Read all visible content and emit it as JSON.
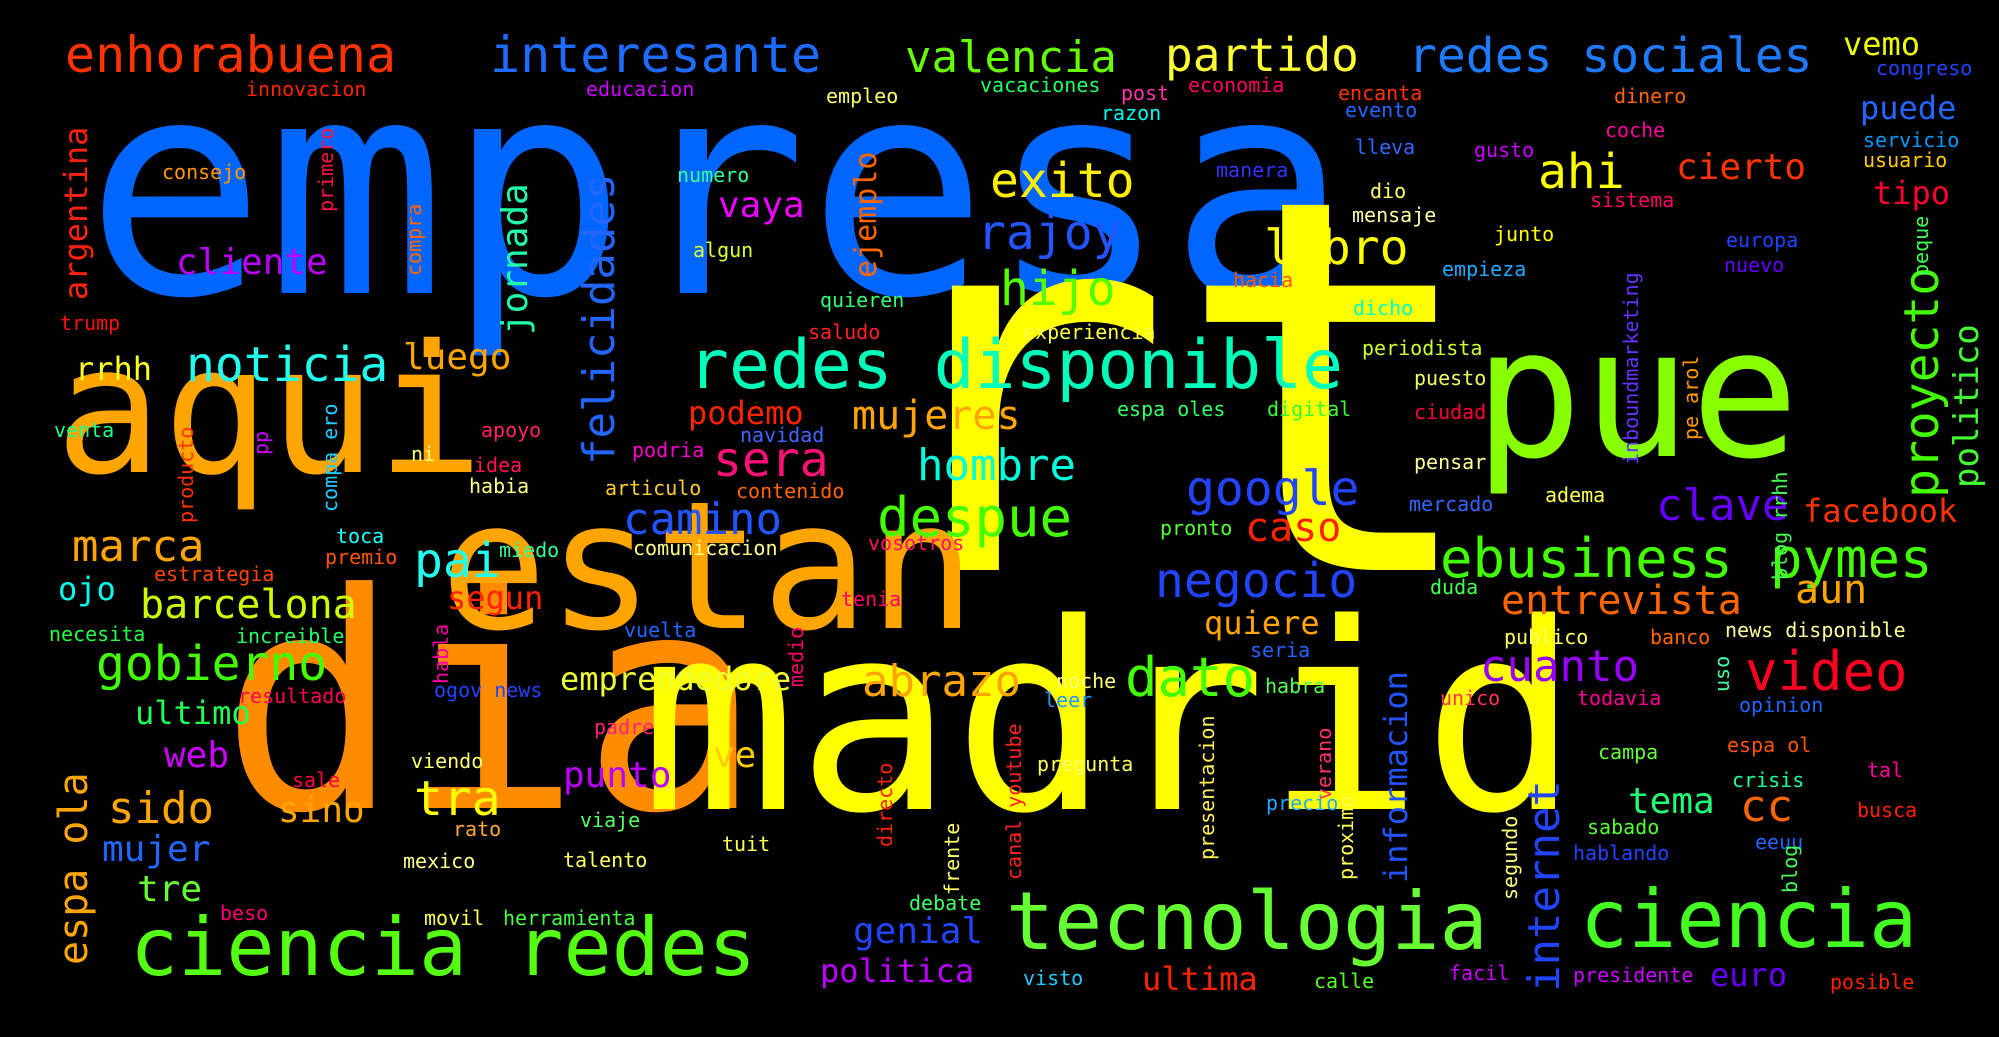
{
  "words": [
    {
      "text": "empresa",
      "color": "#0066ff"
    },
    {
      "text": "rt",
      "color": "#ffff00"
    },
    {
      "text": "dia",
      "color": "#ff8c00"
    },
    {
      "text": "madrid",
      "color": "#ffff00"
    },
    {
      "text": "aqui",
      "color": "#ffa500"
    },
    {
      "text": "estan",
      "color": "#ffa500"
    },
    {
      "text": "pue",
      "color": "#88ff00"
    },
    {
      "text": "tecnologia",
      "color": "#66ff33"
    },
    {
      "text": "ciencia redes",
      "color": "#55ff11"
    },
    {
      "text": "ciencia",
      "color": "#44ff22"
    },
    {
      "text": "redes disponible",
      "color": "#00ffbb"
    },
    {
      "text": "enhorabuena",
      "color": "#ff3300"
    },
    {
      "text": "interesante",
      "color": "#1e6bff"
    },
    {
      "text": "valencia",
      "color": "#66ff00"
    },
    {
      "text": "partido",
      "color": "#ffff33"
    },
    {
      "text": "redes sociales",
      "color": "#1e7bff"
    },
    {
      "text": "vemo",
      "color": "#eeff00"
    },
    {
      "text": "congreso",
      "color": "#2244ff"
    },
    {
      "text": "innovacion",
      "color": "#ff2200"
    },
    {
      "text": "educacion",
      "color": "#cc00ff"
    },
    {
      "text": "empleo",
      "color": "#ffff66"
    },
    {
      "text": "vacaciones",
      "color": "#22ff66"
    },
    {
      "text": "post",
      "color": "#ff33aa"
    },
    {
      "text": "economia",
      "color": "#ff0066"
    },
    {
      "text": "encanta",
      "color": "#ff3300"
    },
    {
      "text": "evento",
      "color": "#2266ff"
    },
    {
      "text": "dinero",
      "color": "#ff6600"
    },
    {
      "text": "puede",
      "color": "#2266ff"
    },
    {
      "text": "servicio",
      "color": "#0099ff"
    },
    {
      "text": "usuario",
      "color": "#ffcc00"
    },
    {
      "text": "razon",
      "color": "#00ffee"
    },
    {
      "text": "coche",
      "color": "#ff0099"
    },
    {
      "text": "lleva",
      "color": "#3366ff"
    },
    {
      "text": "gusto",
      "color": "#cc00ff"
    },
    {
      "text": "consejo",
      "color": "#ff9900"
    },
    {
      "text": "numero",
      "color": "#33ff99"
    },
    {
      "text": "manera",
      "color": "#3333ff"
    },
    {
      "text": "exito",
      "color": "#ffee00"
    },
    {
      "text": "ahi",
      "color": "#ffff00"
    },
    {
      "text": "cierto",
      "color": "#ff3300"
    },
    {
      "text": "tipo",
      "color": "#ff0033"
    },
    {
      "text": "dio",
      "color": "#ffff66"
    },
    {
      "text": "mensaje",
      "color": "#ffffaa"
    },
    {
      "text": "sistema",
      "color": "#ff0066"
    },
    {
      "text": "vaya",
      "color": "#ee00ff"
    },
    {
      "text": "rajoy",
      "color": "#2255ff"
    },
    {
      "text": "algun",
      "color": "#ddff33"
    },
    {
      "text": "junto",
      "color": "#ffff00"
    },
    {
      "text": "europa",
      "color": "#2244ff"
    },
    {
      "text": "nuevo",
      "color": "#6600ff"
    },
    {
      "text": "libro",
      "color": "#ffff00"
    },
    {
      "text": "empieza",
      "color": "#22aaff"
    },
    {
      "text": "cliente",
      "color": "#bb00ff"
    },
    {
      "text": "hijo",
      "color": "#55ff00"
    },
    {
      "text": "hacia",
      "color": "#ff5500"
    },
    {
      "text": "dicho",
      "color": "#00ffcc"
    },
    {
      "text": "quieren",
      "color": "#33ff77"
    },
    {
      "text": "saludo",
      "color": "#ff2222"
    },
    {
      "text": "experiencia",
      "color": "#ffff44"
    },
    {
      "text": "trump",
      "color": "#ff1111"
    },
    {
      "text": "rrhh",
      "color": "#ffff22"
    },
    {
      "text": "noticia",
      "color": "#22ffee"
    },
    {
      "text": "luego",
      "color": "#ffa500"
    },
    {
      "text": "periodista",
      "color": "#ccff33"
    },
    {
      "text": "puesto",
      "color": "#eeff66"
    },
    {
      "text": "podemo",
      "color": "#ff2200"
    },
    {
      "text": "mujeres",
      "color": "#ffa500"
    },
    {
      "text": "espa oles",
      "color": "#33ff66"
    },
    {
      "text": "digital",
      "color": "#33ff33"
    },
    {
      "text": "ciudad",
      "color": "#ff0033"
    },
    {
      "text": "venta",
      "color": "#22ff88"
    },
    {
      "text": "apoyo",
      "color": "#ff2266"
    },
    {
      "text": "navidad",
      "color": "#4466ff"
    },
    {
      "text": "sera",
      "color": "#ff1177"
    },
    {
      "text": "hombre",
      "color": "#00ffdd"
    },
    {
      "text": "ni",
      "color": "#ffff77"
    },
    {
      "text": "idea",
      "color": "#ff1155"
    },
    {
      "text": "podria",
      "color": "#ff00cc"
    },
    {
      "text": "pensar",
      "color": "#ffff99"
    },
    {
      "text": "habia",
      "color": "#ffff88"
    },
    {
      "text": "articulo",
      "color": "#ffcc33"
    },
    {
      "text": "contenido",
      "color": "#ff6600"
    },
    {
      "text": "adema",
      "color": "#ffff55"
    },
    {
      "text": "mercado",
      "color": "#3366ff"
    },
    {
      "text": "google",
      "color": "#2244ff"
    },
    {
      "text": "clave",
      "color": "#6600ff"
    },
    {
      "text": "facebook",
      "color": "#ff3300"
    },
    {
      "text": "despue",
      "color": "#44ff00"
    },
    {
      "text": "camino",
      "color": "#2255ff"
    },
    {
      "text": "caso",
      "color": "#ff2200"
    },
    {
      "text": "pronto",
      "color": "#55ff33"
    },
    {
      "text": "toca",
      "color": "#22ffff"
    },
    {
      "text": "miedo",
      "color": "#33ff99"
    },
    {
      "text": "comunicacion",
      "color": "#ffff88"
    },
    {
      "text": "vosotros",
      "color": "#ff1166"
    },
    {
      "text": "marca",
      "color": "#ffa500"
    },
    {
      "text": "pai",
      "color": "#22ffee"
    },
    {
      "text": "premio",
      "color": "#ff5500"
    },
    {
      "text": "ebusiness",
      "color": "#44ff00"
    },
    {
      "text": "pymes",
      "color": "#44ff00"
    },
    {
      "text": "negocio",
      "color": "#2244ff"
    },
    {
      "text": "estrategia",
      "color": "#ff4400"
    },
    {
      "text": "ojo",
      "color": "#00ffee"
    },
    {
      "text": "barcelona",
      "color": "#ccff00"
    },
    {
      "text": "segun",
      "color": "#ff2200"
    },
    {
      "text": "tenia",
      "color": "#ff0066"
    },
    {
      "text": "quiere",
      "color": "#ffa500"
    },
    {
      "text": "duda",
      "color": "#44ff55"
    },
    {
      "text": "entrevista",
      "color": "#ff6600"
    },
    {
      "text": "aun",
      "color": "#ffa500"
    },
    {
      "text": "necesita",
      "color": "#22ff44"
    },
    {
      "text": "increible",
      "color": "#22ff66"
    },
    {
      "text": "vuelta",
      "color": "#2266ff"
    },
    {
      "text": "publico",
      "color": "#ffff66"
    },
    {
      "text": "banco",
      "color": "#ff6600"
    },
    {
      "text": "news disponible",
      "color": "#ffff99"
    },
    {
      "text": "gobierno",
      "color": "#44ff00"
    },
    {
      "text": "emprendedore",
      "color": "#eeff33"
    },
    {
      "text": "abrazo",
      "color": "#ffa500"
    },
    {
      "text": "dato",
      "color": "#44ff00"
    },
    {
      "text": "cuanto",
      "color": "#9900ff"
    },
    {
      "text": "video",
      "color": "#ff0022"
    },
    {
      "text": "seria",
      "color": "#2266ff"
    },
    {
      "text": "habra",
      "color": "#55ff55"
    },
    {
      "text": "noche",
      "color": "#ffff77"
    },
    {
      "text": "leer",
      "color": "#2299ff"
    },
    {
      "text": "unico",
      "color": "#ff3355"
    },
    {
      "text": "todavia",
      "color": "#ff0099"
    },
    {
      "text": "opinion",
      "color": "#2266ff"
    },
    {
      "text": "resultado",
      "color": "#ff0055"
    },
    {
      "text": "ogov news",
      "color": "#2244ff"
    },
    {
      "text": "ultimo",
      "color": "#22ff55"
    },
    {
      "text": "padre",
      "color": "#ff2277"
    },
    {
      "text": "campa",
      "color": "#66ff33"
    },
    {
      "text": "web",
      "color": "#cc00ff"
    },
    {
      "text": "espa ol",
      "color": "#ff5500"
    },
    {
      "text": "crisis",
      "color": "#22ff99"
    },
    {
      "text": "tal",
      "color": "#ff0099"
    },
    {
      "text": "punto",
      "color": "#bb00ff"
    },
    {
      "text": "ve",
      "color": "#ffcc00"
    },
    {
      "text": "sale",
      "color": "#ff0044"
    },
    {
      "text": "viendo",
      "color": "#ffff77"
    },
    {
      "text": "pregunta",
      "color": "#ffff66"
    },
    {
      "text": "sido",
      "color": "#ffa500"
    },
    {
      "text": "sino",
      "color": "#ffa500"
    },
    {
      "text": "tra",
      "color": "#ffff00"
    },
    {
      "text": "precio",
      "color": "#22aaff"
    },
    {
      "text": "tema",
      "color": "#22ff77"
    },
    {
      "text": "cc",
      "color": "#ff6600"
    },
    {
      "text": "busca",
      "color": "#ff2200"
    },
    {
      "text": "rato",
      "color": "#ffaa33"
    },
    {
      "text": "viaje",
      "color": "#55ff66"
    },
    {
      "text": "sabado",
      "color": "#55ff33"
    },
    {
      "text": "eeuu",
      "color": "#2266ff"
    },
    {
      "text": "mujer",
      "color": "#2266ff"
    },
    {
      "text": "mexico",
      "color": "#ffff88"
    },
    {
      "text": "talento",
      "color": "#ffff66"
    },
    {
      "text": "tuit",
      "color": "#ffff55"
    },
    {
      "text": "hablando",
      "color": "#2244ff"
    },
    {
      "text": "tre",
      "color": "#66ff33"
    },
    {
      "text": "beso",
      "color": "#ff0077"
    },
    {
      "text": "debate",
      "color": "#44ff66"
    },
    {
      "text": "genial",
      "color": "#2244ff"
    },
    {
      "text": "movil",
      "color": "#ffff55"
    },
    {
      "text": "herramienta",
      "color": "#44ff44"
    },
    {
      "text": "politica",
      "color": "#bb00ff"
    },
    {
      "text": "visto",
      "color": "#22ccff"
    },
    {
      "text": "ultima",
      "color": "#ff2200"
    },
    {
      "text": "calle",
      "color": "#55ff22"
    },
    {
      "text": "facil",
      "color": "#cc00ff"
    },
    {
      "text": "presidente",
      "color": "#cc00ff"
    },
    {
      "text": "euro",
      "color": "#6600ff"
    },
    {
      "text": "posible",
      "color": "#ff2200"
    },
    {
      "text": "argentina",
      "color": "#ff2211"
    },
    {
      "text": "primero",
      "color": "#ff1144"
    },
    {
      "text": "compra",
      "color": "#ff6600"
    },
    {
      "text": "felicidades",
      "color": "#2266ff"
    },
    {
      "text": "jornada",
      "color": "#22ffaa"
    },
    {
      "text": "ejemplo",
      "color": "#ff6600"
    },
    {
      "text": "proyecto",
      "color": "#44ff00"
    },
    {
      "text": "politico",
      "color": "#44ff33"
    },
    {
      "text": "inboundmarketing",
      "color": "#6633ff"
    },
    {
      "text": "pe arol",
      "color": "#ff9900"
    },
    {
      "text": "peque",
      "color": "#44ff55"
    },
    {
      "text": "producto",
      "color": "#ff3300"
    },
    {
      "text": "pp",
      "color": "#cc00ff"
    },
    {
      "text": "compa ero",
      "color": "#22ccff"
    },
    {
      "text": "espa ola",
      "color": "#ffa500"
    },
    {
      "text": "habla",
      "color": "#ff00aa"
    },
    {
      "text": "medio",
      "color": "#ff0066"
    },
    {
      "text": "informacion",
      "color": "#2255ff"
    },
    {
      "text": "internet",
      "color": "#2244ff"
    },
    {
      "text": "canal youtube",
      "color": "#ff2222"
    },
    {
      "text": "directo",
      "color": "#ff2200"
    },
    {
      "text": "frente",
      "color": "#ffff66"
    },
    {
      "text": "verano",
      "color": "#ff3366"
    },
    {
      "text": "proximo",
      "color": "#ffff55"
    },
    {
      "text": "presentacion",
      "color": "#ffee55"
    },
    {
      "text": "segundo",
      "color": "#ffff77"
    },
    {
      "text": "blog rrhh",
      "color": "#44ff55"
    },
    {
      "text": "blog",
      "color": "#44ff55"
    },
    {
      "text": "uso",
      "color": "#44ffaa"
    }
  ]
}
